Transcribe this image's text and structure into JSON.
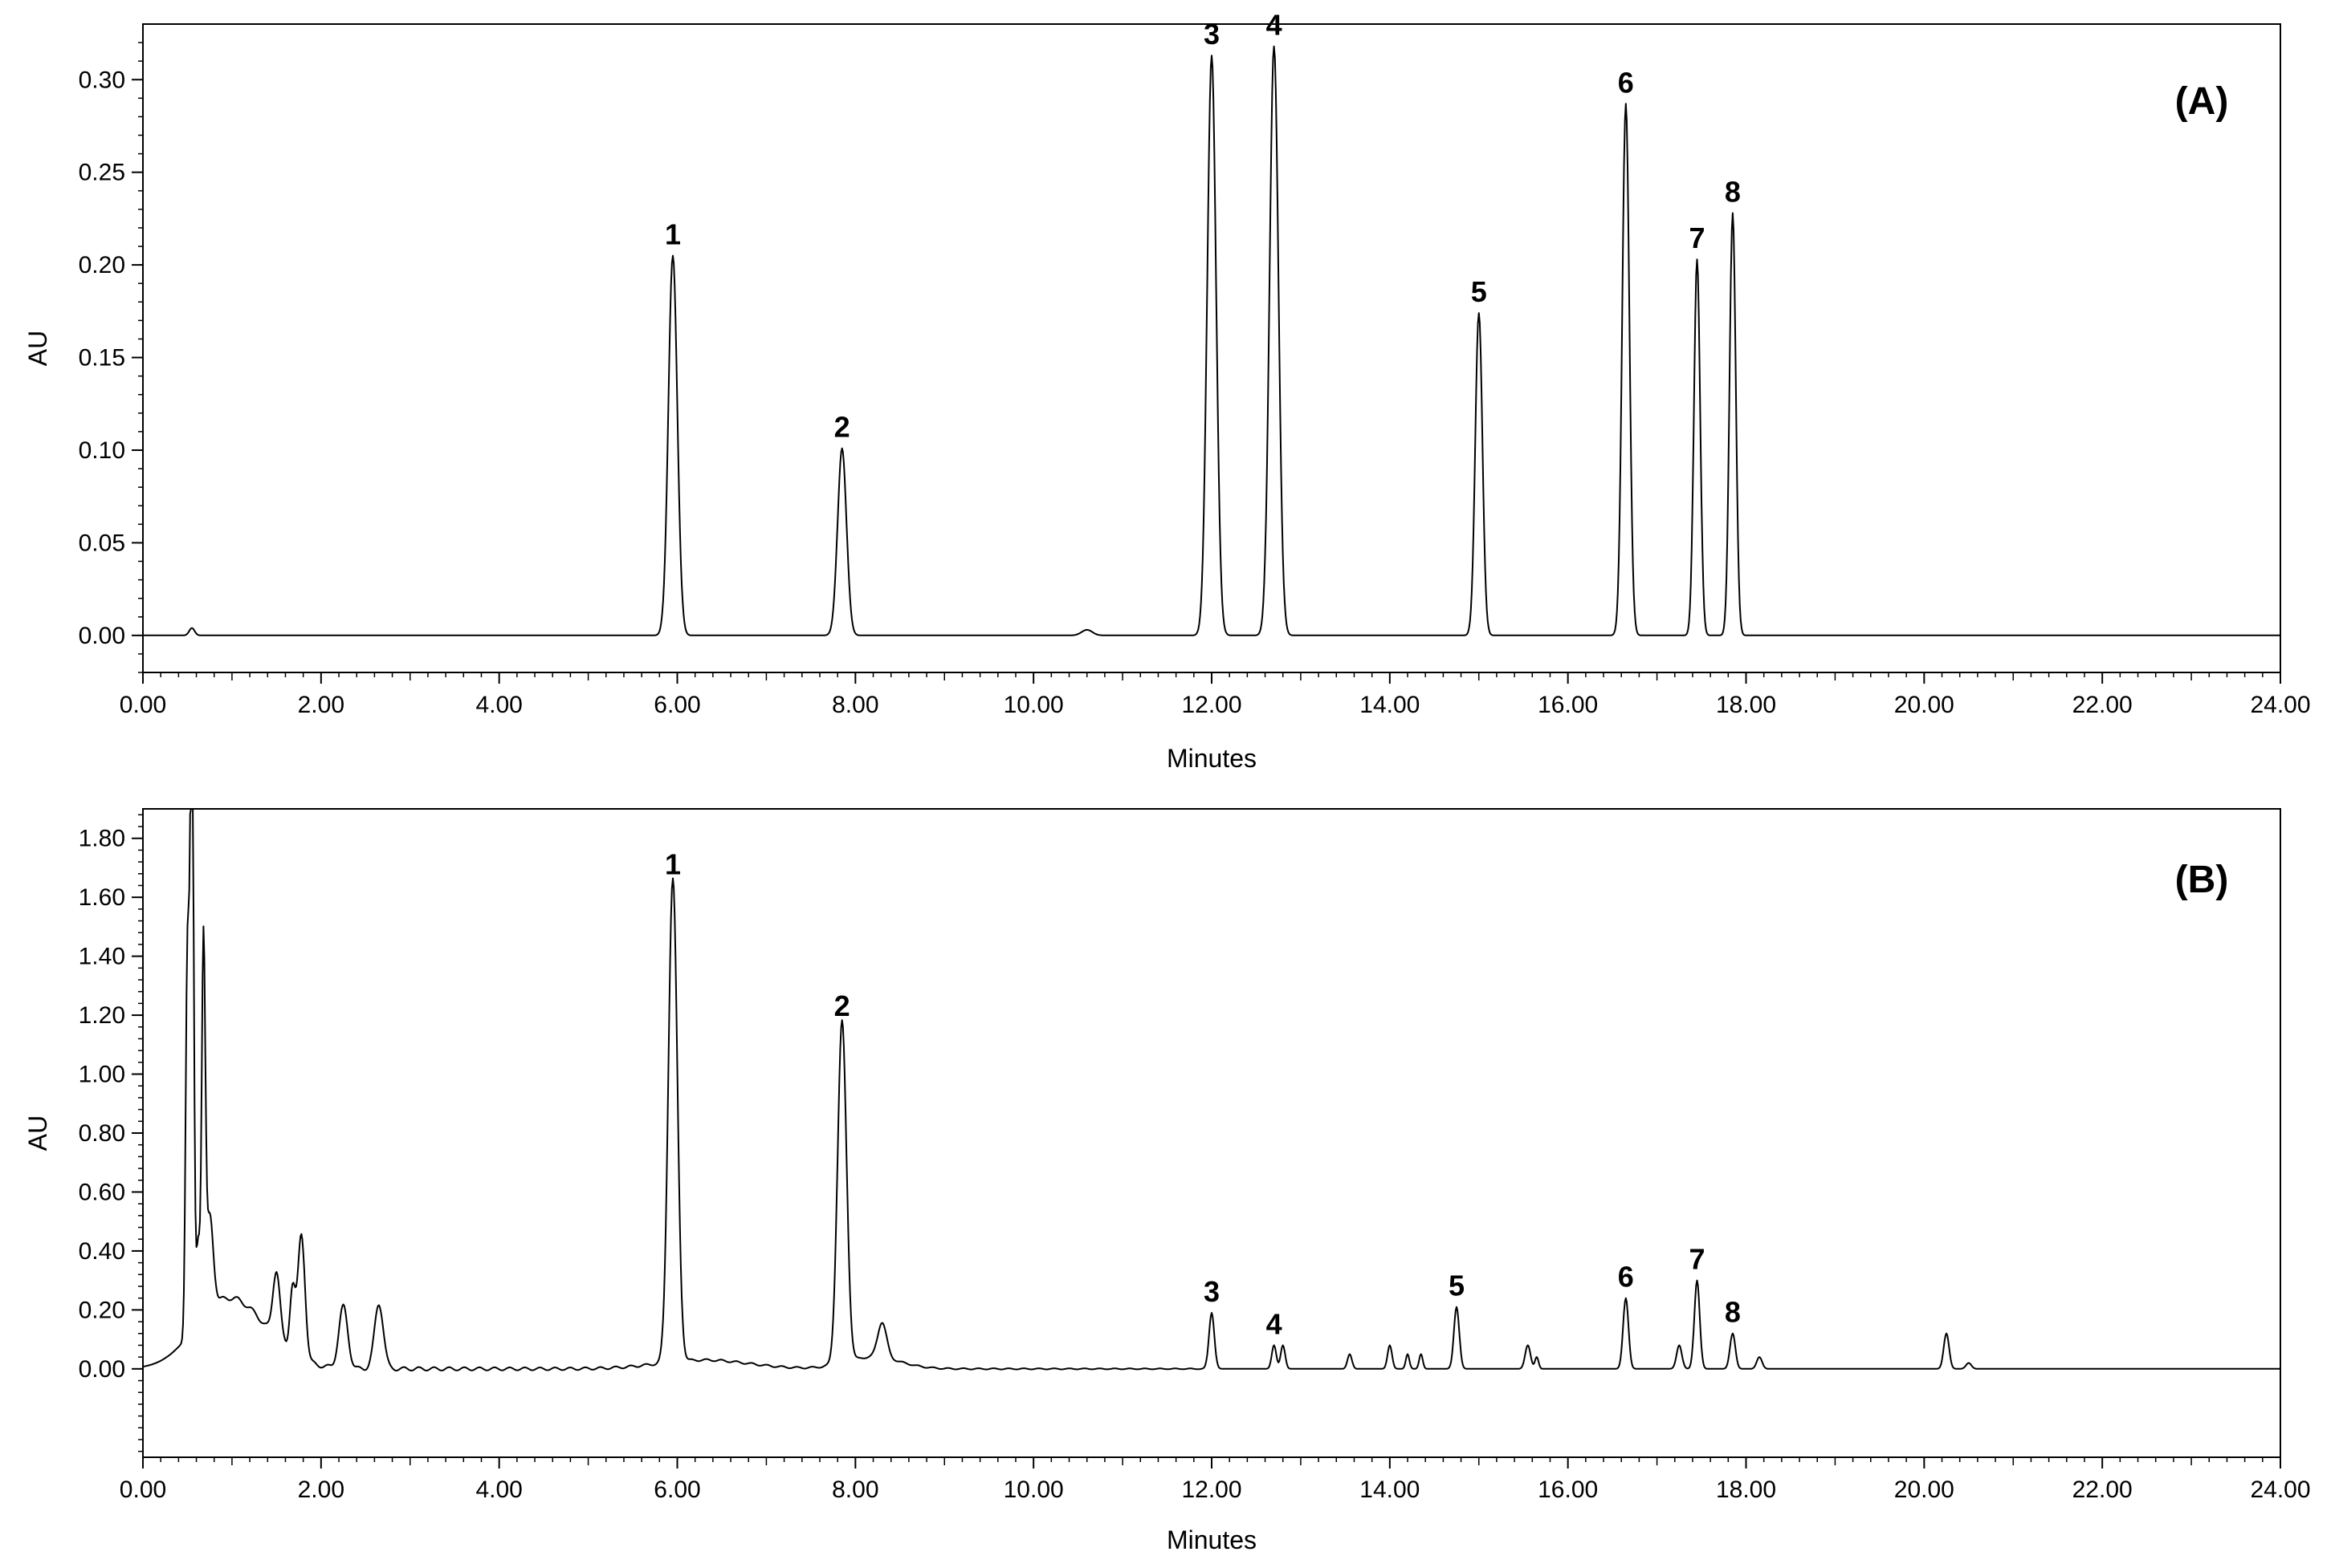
{
  "chart_data": [
    {
      "type": "line",
      "panel_label": "(A)",
      "xlabel": "Minutes",
      "ylabel": "AU",
      "xlim": [
        0,
        24
      ],
      "ylim": [
        -0.02,
        0.33
      ],
      "x_ticks": [
        "0.00",
        "2.00",
        "4.00",
        "6.00",
        "8.00",
        "10.00",
        "12.00",
        "14.00",
        "16.00",
        "18.00",
        "20.00",
        "22.00",
        "24.00"
      ],
      "y_ticks": [
        "0.00",
        "0.05",
        "0.10",
        "0.15",
        "0.20",
        "0.25",
        "0.30"
      ],
      "y_tick_values": [
        0,
        0.05,
        0.1,
        0.15,
        0.2,
        0.25,
        0.3
      ],
      "peaks": [
        {
          "label": "1",
          "x": 5.95,
          "y": 0.205,
          "w": 0.05
        },
        {
          "label": "2",
          "x": 7.85,
          "y": 0.101,
          "w": 0.05
        },
        {
          "label": "3",
          "x": 12.0,
          "y": 0.313,
          "w": 0.05
        },
        {
          "label": "4",
          "x": 12.7,
          "y": 0.318,
          "w": 0.05
        },
        {
          "label": "5",
          "x": 15.0,
          "y": 0.174,
          "w": 0.04
        },
        {
          "label": "6",
          "x": 16.65,
          "y": 0.287,
          "w": 0.04
        },
        {
          "label": "7",
          "x": 17.45,
          "y": 0.203,
          "w": 0.035
        },
        {
          "label": "8",
          "x": 17.85,
          "y": 0.228,
          "w": 0.035
        }
      ],
      "minor_peaks": [
        {
          "x": 0.55,
          "y": 0.004,
          "w": 0.03
        },
        {
          "x": 10.6,
          "y": 0.003,
          "w": 0.06
        }
      ]
    },
    {
      "type": "line",
      "panel_label": "(B)",
      "xlabel": "Minutes",
      "ylabel": "AU",
      "xlim": [
        0,
        24
      ],
      "ylim": [
        -0.3,
        1.9
      ],
      "x_ticks": [
        "0.00",
        "2.00",
        "4.00",
        "6.00",
        "8.00",
        "10.00",
        "12.00",
        "14.00",
        "16.00",
        "18.00",
        "20.00",
        "22.00",
        "24.00"
      ],
      "y_ticks": [
        "0.00",
        "0.20",
        "0.40",
        "0.60",
        "0.80",
        "1.00",
        "1.20",
        "1.40",
        "1.60",
        "1.80"
      ],
      "y_tick_values": [
        0,
        0.2,
        0.4,
        0.6,
        0.8,
        1.0,
        1.2,
        1.4,
        1.6,
        1.8
      ],
      "peaks": [
        {
          "label": "1",
          "x": 5.95,
          "y": 1.64,
          "w": 0.05
        },
        {
          "label": "2",
          "x": 7.85,
          "y": 1.16,
          "w": 0.05
        },
        {
          "label": "3",
          "x": 12.0,
          "y": 0.19,
          "w": 0.03
        },
        {
          "label": "4",
          "x": 12.7,
          "y": 0.08,
          "w": 0.025
        },
        {
          "label": "5",
          "x": 14.75,
          "y": 0.21,
          "w": 0.03
        },
        {
          "label": "6",
          "x": 16.65,
          "y": 0.24,
          "w": 0.03
        },
        {
          "label": "7",
          "x": 17.45,
          "y": 0.3,
          "w": 0.03
        },
        {
          "label": "8",
          "x": 17.85,
          "y": 0.12,
          "w": 0.03
        }
      ],
      "minor_peaks": [
        {
          "x": 0.5,
          "y": 1.3,
          "w": 0.02
        },
        {
          "x": 0.55,
          "y": 2.2,
          "w": 0.02
        },
        {
          "x": 0.62,
          "y": 0.28,
          "w": 0.02
        },
        {
          "x": 0.68,
          "y": 1.25,
          "w": 0.02
        },
        {
          "x": 0.75,
          "y": 0.32,
          "w": 0.04
        },
        {
          "x": 1.5,
          "y": 0.23,
          "w": 0.04
        },
        {
          "x": 1.68,
          "y": 0.22,
          "w": 0.03
        },
        {
          "x": 1.78,
          "y": 0.42,
          "w": 0.04
        },
        {
          "x": 2.25,
          "y": 0.21,
          "w": 0.05
        },
        {
          "x": 2.65,
          "y": 0.22,
          "w": 0.05
        },
        {
          "x": 8.3,
          "y": 0.12,
          "w": 0.05
        },
        {
          "x": 12.8,
          "y": 0.08,
          "w": 0.025
        },
        {
          "x": 13.55,
          "y": 0.05,
          "w": 0.025
        },
        {
          "x": 14.0,
          "y": 0.08,
          "w": 0.025
        },
        {
          "x": 14.2,
          "y": 0.05,
          "w": 0.02
        },
        {
          "x": 14.35,
          "y": 0.05,
          "w": 0.02
        },
        {
          "x": 15.55,
          "y": 0.08,
          "w": 0.03
        },
        {
          "x": 15.65,
          "y": 0.04,
          "w": 0.02
        },
        {
          "x": 17.25,
          "y": 0.08,
          "w": 0.03
        },
        {
          "x": 18.15,
          "y": 0.04,
          "w": 0.03
        },
        {
          "x": 20.25,
          "y": 0.12,
          "w": 0.03
        },
        {
          "x": 20.5,
          "y": 0.02,
          "w": 0.03
        }
      ],
      "baseline_bumps": [
        {
          "x": 0.9,
          "y": 0.2,
          "w": 0.35
        },
        {
          "x": 1.3,
          "y": 0.07,
          "w": 0.35
        },
        {
          "x": 6.3,
          "y": 0.03,
          "w": 0.5
        },
        {
          "x": 8.2,
          "y": 0.04,
          "w": 0.3
        }
      ]
    }
  ]
}
